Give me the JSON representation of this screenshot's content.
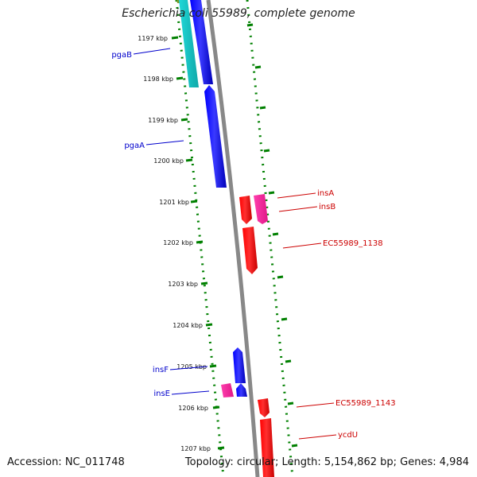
{
  "title": "Escherichia coli 55989, complete genome",
  "footer": {
    "accession": "Accession: NC_011748",
    "summary": "Topology: circular; Length: 5,154,862 bp; Genes: 4,984"
  },
  "kbp_ticks": [
    "1197 kbp",
    "1198 kbp",
    "1199 kbp",
    "1200 kbp",
    "1201 kbp",
    "1202 kbp",
    "1203 kbp",
    "1204 kbp",
    "1205 kbp",
    "1206 kbp",
    "1207 kbp"
  ],
  "gene_labels": {
    "pgaB": "pgaB",
    "pgaA": "pgaA",
    "insA": "insA",
    "insB": "insB",
    "ec1138": "EC55989_1138",
    "insF": "insF",
    "insE": "insE",
    "ec1143": "EC55989_1143",
    "ycdU": "ycdU"
  },
  "colors": {
    "forward": "#0000ee",
    "reverse": "#ee0000",
    "pseudo": "#ff2fa0",
    "rna": "#1ec8c8",
    "olive": "#7a9a2a",
    "backbone": "#888888",
    "tick": "#008000",
    "label_blue": "#0000cc",
    "label_red": "#cc0000"
  }
}
